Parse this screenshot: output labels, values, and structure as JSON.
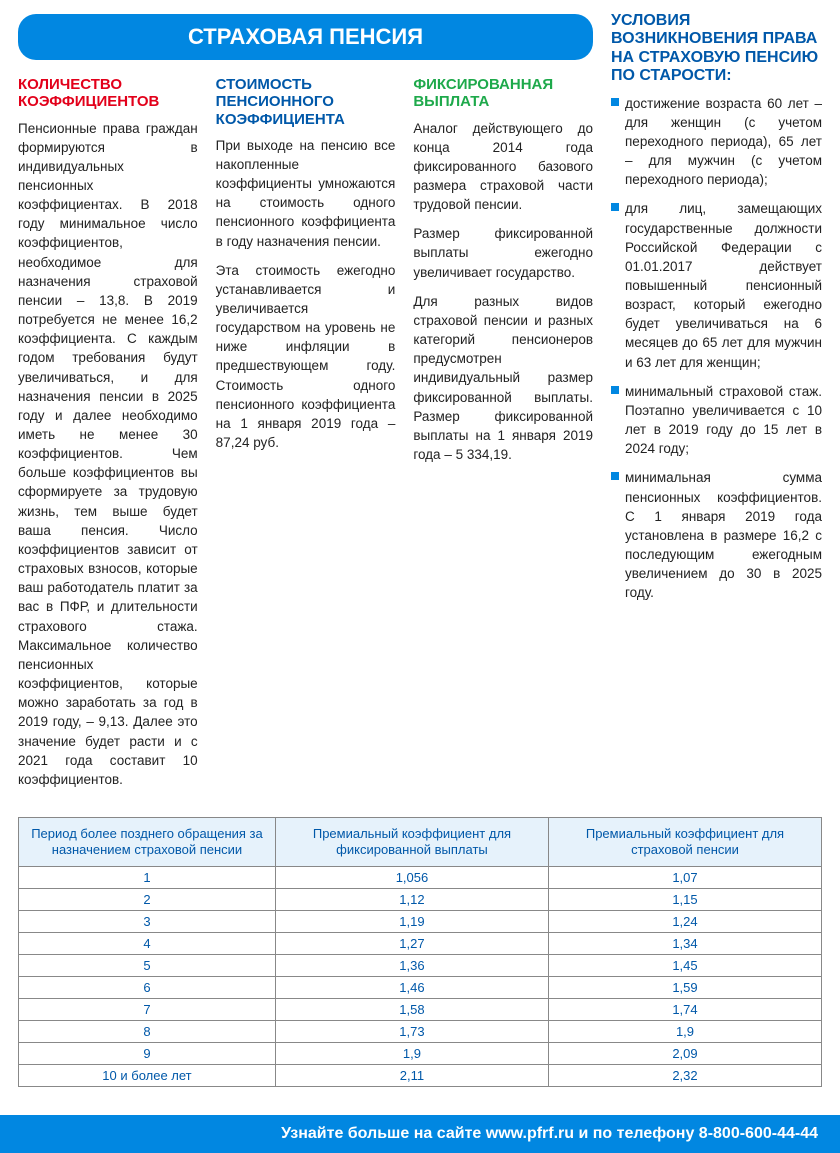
{
  "title_bar": "СТРАХОВАЯ ПЕНСИЯ",
  "columns": {
    "col1": {
      "heading": "КОЛИЧЕСТВО КОЭФФИЦИЕНТОВ",
      "text": "Пенсионные права граждан формируются в индивидуальных пенсионных коэффициентах. В 2018 году минимальное число коэффициентов, необходимое для назначения страховой пенсии – 13,8. В 2019 потребуется не менее 16,2 коэффициента. С каждым годом требования будут увеличиваться, и для назначения пенсии в 2025 году и далее необходимо иметь не менее 30 коэффициентов. Чем больше коэффициентов вы сформируете за трудовую жизнь, тем выше будет ваша пенсия. Число коэффициентов зависит от страховых взносов, которые ваш работодатель платит за вас в ПФР, и длительности страхового стажа. Максимальное количество пенсионных коэффициентов, которые можно заработать за год в 2019 году, – 9,13. Далее это значение будет расти и с 2021 года составит 10 коэффициентов."
    },
    "col2": {
      "heading": "СТОИМОСТЬ ПЕНСИОННОГО КОЭФФИЦИЕНТА",
      "p1": "При выходе на пенсию все накопленные коэффициенты умножаются на стоимость одного пенсионного коэффициента в году назначения пенсии.",
      "p2": "Эта стоимость ежегодно устанавливается и увеличивается государством на уровень не ниже инфляции в предшествующем году. Стоимость одного пенсионного коэффициента на 1 января 2019 года – 87,24 руб."
    },
    "col3": {
      "heading": "ФИКСИРОВАННАЯ ВЫПЛАТА",
      "p1": "Аналог действующего до конца 2014 года фиксированного базового размера страховой части трудовой пенсии.",
      "p2": "Размер фиксированной выплаты ежегодно увеличивает государство.",
      "p3": "Для разных видов страховой пенсии и разных категорий пенсионеров предусмотрен индивидуальный размер фиксированной выплаты. Размер фиксированной выплаты на 1 января 2019 года – 5 334,19."
    }
  },
  "right": {
    "heading": "УСЛОВИЯ ВОЗНИКНОВЕНИЯ ПРАВА НА СТРАХОВУЮ ПЕНСИЮ ПО СТАРОСТИ:",
    "items": [
      "достижение возраста 60 лет – для женщин (с учетом переходного периода), 65 лет – для мужчин (с учетом переходного периода);",
      "для лиц, замещающих государственные должности Российской Федерации с 01.01.2017 действует повышенный пенсионный возраст, который ежегодно будет увеличиваться на 6 месяцев до 65 лет для мужчин и 63 лет для женщин;",
      "минимальный страховой стаж. Поэтапно увеличивается с 10 лет в 2019 году до 15 лет в 2024 году;",
      "минимальная сумма пенсионных коэффициентов. С 1 января 2019 года установлена в размере 16,2 с последующим ежегодным увеличением до 30 в 2025 году."
    ]
  },
  "table": {
    "headers": [
      "Период более позднего обращения за назначением страховой пенсии",
      "Премиальный коэффициент для фиксированной выплаты",
      "Премиальный коэффициент для страховой пенсии"
    ],
    "rows": [
      [
        "1",
        "1,056",
        "1,07"
      ],
      [
        "2",
        "1,12",
        "1,15"
      ],
      [
        "3",
        "1,19",
        "1,24"
      ],
      [
        "4",
        "1,27",
        "1,34"
      ],
      [
        "5",
        "1,36",
        "1,45"
      ],
      [
        "6",
        "1,46",
        "1,59"
      ],
      [
        "7",
        "1,58",
        "1,74"
      ],
      [
        "8",
        "1,73",
        "1,9"
      ],
      [
        "9",
        "1,9",
        "2,09"
      ],
      [
        "10 и более лет",
        "2,11",
        "2,32"
      ]
    ]
  },
  "footer": "Узнайте больше на сайте www.pfrf.ru и по телефону 8-800-600-44-44"
}
